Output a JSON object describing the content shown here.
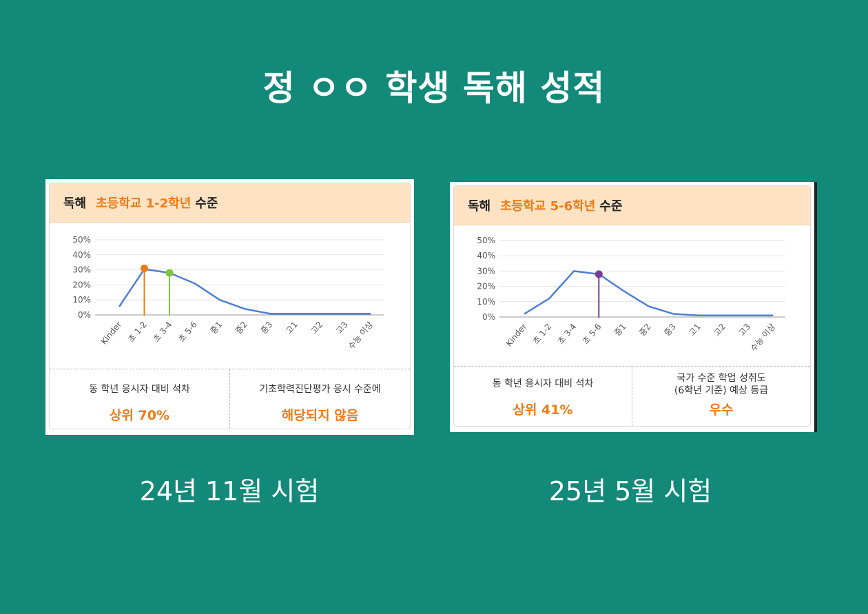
{
  "title": "정 ㅇㅇ 학생 독해 성적",
  "chart_data": [
    {
      "type": "line",
      "title": "독해 초등학교 1-2학년 수준",
      "title_prefix": "독해",
      "title_level": "초등학교 1-2학년",
      "title_suffix": "수준",
      "categories": [
        "Kinder",
        "초 1-2",
        "초 3-4",
        "초 5-6",
        "중1",
        "중2",
        "중3",
        "고1",
        "고2",
        "고3",
        "수능 이상"
      ],
      "values": [
        5.5,
        30.5,
        28,
        21,
        10,
        4,
        0.8,
        0.8,
        0.8,
        0.8,
        0.8
      ],
      "ylim": [
        0,
        50
      ],
      "yticks": [
        "0%",
        "10%",
        "20%",
        "30%",
        "40%",
        "50%"
      ],
      "grid": true,
      "line_color": "#4f7fd1",
      "markers": [
        {
          "x": 1,
          "y": 31,
          "color": "#ef7b16"
        },
        {
          "x": 2,
          "y": 28,
          "color": "#7cc63a"
        }
      ],
      "stat_left_label": "동 학년 응시자 대비 석차",
      "stat_left_value": "상위 70%",
      "stat_right_label": "기초학력진단평가 응시 수준에",
      "stat_right_value": "해당되지 않음",
      "caption": "24년 11월 시험"
    },
    {
      "type": "line",
      "title": "독해 초등학교 5-6학년 수준",
      "title_prefix": "독해",
      "title_level": "초등학교 5-6학년",
      "title_suffix": "수준",
      "categories": [
        "Kinder",
        "초 1-2",
        "초 3-4",
        "초 5-6",
        "중1",
        "중2",
        "중3",
        "고1",
        "고2",
        "고3",
        "수능 이상"
      ],
      "values": [
        2,
        12,
        30,
        28,
        17,
        7,
        2,
        1,
        1,
        1,
        1
      ],
      "ylim": [
        0,
        50
      ],
      "yticks": [
        "0%",
        "10%",
        "20%",
        "30%",
        "40%",
        "50%"
      ],
      "grid": true,
      "line_color": "#4f7fd1",
      "markers": [
        {
          "x": 3,
          "y": 28,
          "color": "#7a3a9a"
        }
      ],
      "stat_left_label": "동 학년 응시자 대비 석차",
      "stat_left_value": "상위 41%",
      "stat_right_label_1": "국가 수준 학업 성취도",
      "stat_right_label_2": "(6학년 기준) 예상 등급",
      "stat_right_value": "우수",
      "caption": "25년 5월 시험"
    }
  ]
}
